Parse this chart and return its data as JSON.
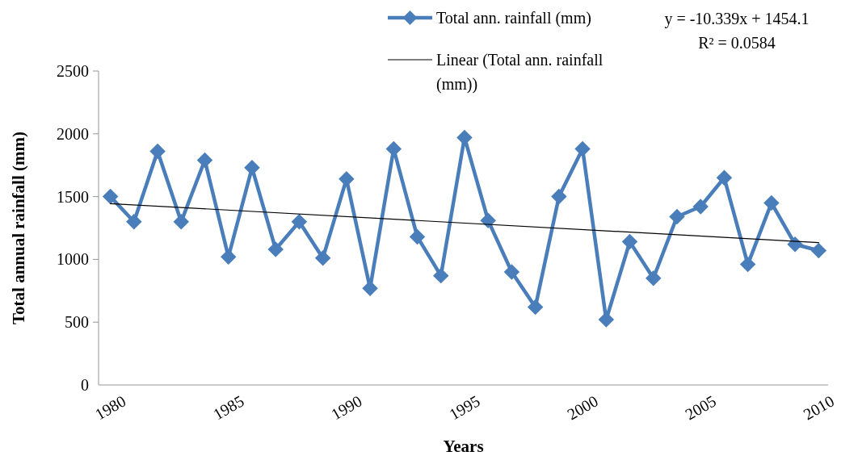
{
  "chart_data": {
    "type": "line",
    "xlabel": "Years",
    "ylabel": "Total annual rainfall (mm)",
    "xlim": [
      1979.5,
      2010.4
    ],
    "xticks": [
      1980,
      1985,
      1990,
      1995,
      2000,
      2005,
      2010
    ],
    "ylim": [
      0,
      2500
    ],
    "yticks": [
      0,
      500,
      1000,
      1500,
      2000,
      2500
    ],
    "grid": false,
    "legend": "top",
    "annotations": [
      "y = -10.339x + 1454.1",
      "R² = 0.0584"
    ],
    "series": [
      {
        "name": "Total ann. rainfall (mm)",
        "color": "#4a7ebb",
        "marker": "diamond",
        "x": [
          1980,
          1981,
          1982,
          1983,
          1984,
          1985,
          1986,
          1987,
          1988,
          1989,
          1990,
          1991,
          1992,
          1993,
          1994,
          1995,
          1996,
          1997,
          1998,
          1999,
          2000,
          2001,
          2002,
          2003,
          2004,
          2005,
          2006,
          2007,
          2008,
          2009,
          2010
        ],
        "values": [
          1500,
          1300,
          1860,
          1300,
          1790,
          1020,
          1730,
          1080,
          1300,
          1010,
          1640,
          770,
          1880,
          1180,
          870,
          1970,
          1310,
          900,
          620,
          1500,
          1880,
          520,
          1140,
          850,
          1340,
          1420,
          1650,
          960,
          1450,
          1120,
          1070
        ]
      },
      {
        "name": "Linear (Total ann. rainfall (mm))",
        "type": "line",
        "color": "#000000",
        "marker": "none",
        "x": [
          1980,
          2010
        ],
        "values": [
          1444,
          1134
        ]
      }
    ]
  }
}
